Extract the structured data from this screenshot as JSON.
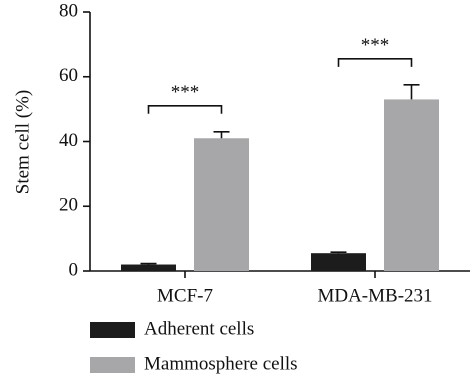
{
  "chart_data": {
    "type": "bar",
    "y_label": "Stem cell (%)",
    "categories": [
      "MCF-7",
      "MDA-MB-231"
    ],
    "series": [
      {
        "name": "Adherent cells",
        "color": "#1c1c1c",
        "values": [
          2,
          5.5
        ],
        "errors": [
          0.3,
          0.3
        ]
      },
      {
        "name": "Mammosphere cells",
        "color": "#a7a7a9",
        "values": [
          41,
          53
        ],
        "errors": [
          2,
          4.5
        ]
      }
    ],
    "annotations": [
      {
        "text": "***"
      },
      {
        "text": "***"
      }
    ],
    "ylim": [
      0,
      80
    ],
    "yticks": [
      0,
      20,
      40,
      60,
      80
    ],
    "grid": false
  }
}
